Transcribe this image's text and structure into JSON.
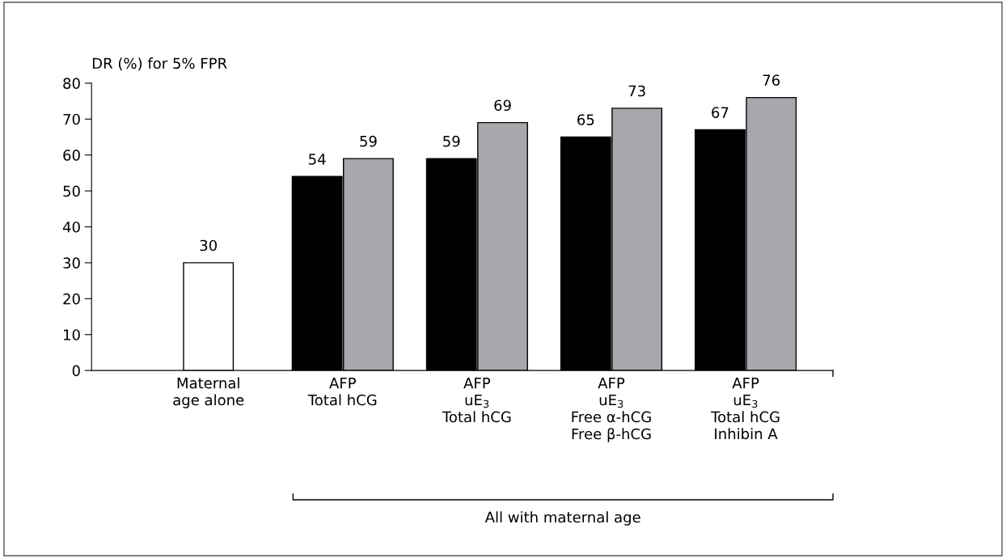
{
  "chart_data": {
    "type": "bar",
    "ylabel": "DR (%) for 5% FPR",
    "categories": [
      "Maternal\nage alone",
      "AFP\nTotal hCG",
      "AFP\nuE$_{3}$\nTotal hCG",
      "AFP\nuE$_{3}$\nFree α-hCG\nFree β-hCG",
      "AFP\nuE$_{3}$\nTotal hCG\nInhibin A"
    ],
    "series": [
      {
        "colors": [
          "#ffffff",
          "#000000",
          "#000000",
          "#000000",
          "#000000"
        ],
        "values": [
          30,
          54,
          59,
          65,
          67
        ]
      },
      {
        "color": "#a7a8ac",
        "values": [
          null,
          59,
          69,
          73,
          76
        ]
      }
    ],
    "ylim": [
      0,
      80
    ],
    "yticks": [
      0,
      10,
      20,
      30,
      40,
      50,
      60,
      70,
      80
    ],
    "data_labels": true,
    "grid": false,
    "legend": false,
    "annotations": [
      "All with maternal age"
    ]
  }
}
